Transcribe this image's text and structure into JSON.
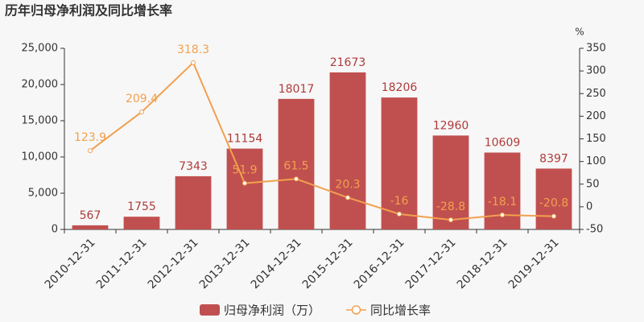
{
  "chart_data": {
    "type": "combo",
    "title": "历年归母净利润及同比增长率",
    "y2_label": "%",
    "categories": [
      "2010-12-31",
      "2011-12-31",
      "2012-12-31",
      "2013-12-31",
      "2014-12-31",
      "2015-12-31",
      "2016-12-31",
      "2017-12-31",
      "2018-12-31",
      "2019-12-31"
    ],
    "series": [
      {
        "name": "归母净利润（万）",
        "type": "bar",
        "color": "#c0504f",
        "axis": "y",
        "values": [
          567,
          1755,
          7343,
          11154,
          18017,
          21673,
          18206,
          12960,
          10609,
          8397
        ]
      },
      {
        "name": "同比增长率",
        "type": "line",
        "color": "#f2a04f",
        "axis": "y2",
        "values": [
          123.9,
          209.4,
          318.3,
          51.9,
          61.5,
          20.3,
          -16,
          -28.8,
          -18.1,
          -20.8
        ]
      }
    ],
    "ylim": [
      0,
      25000
    ],
    "yticks": [
      0,
      {
        "value": 5000,
        "label": "5,000"
      },
      {
        "value": 10000,
        "label": "10,000"
      },
      {
        "value": 15000,
        "label": "15,000"
      },
      {
        "value": 20000,
        "label": "20,000"
      },
      {
        "value": 25000,
        "label": "25,000"
      }
    ],
    "y2lim": [
      -50,
      350
    ],
    "y2ticks": [
      -50,
      0,
      50,
      100,
      150,
      200,
      250,
      300,
      350
    ],
    "grid": false
  }
}
